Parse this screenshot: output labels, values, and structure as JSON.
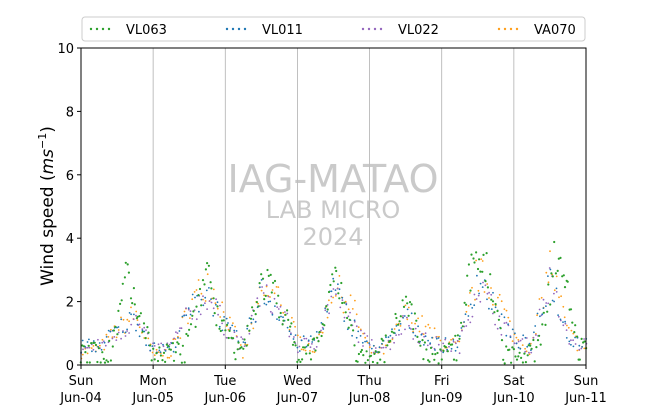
{
  "chart_data": {
    "type": "scatter",
    "ylabel_main": "Wind speed (",
    "ylabel_ms": "ms",
    "ylabel_exp": "−1",
    "ylabel_close": ")",
    "ylim": [
      0,
      10
    ],
    "yticks": [
      "0",
      "2",
      "4",
      "6",
      "8",
      "10"
    ],
    "xlim": [
      "2023-06-04 00:00",
      "2023-06-11 00:00"
    ],
    "xticks": [
      {
        "day": "Sun",
        "date": "Jun-04"
      },
      {
        "day": "Mon",
        "date": "Jun-05"
      },
      {
        "day": "Tue",
        "date": "Jun-06"
      },
      {
        "day": "Wed",
        "date": "Jun-07"
      },
      {
        "day": "Thu",
        "date": "Jun-08"
      },
      {
        "day": "Fri",
        "date": "Jun-09"
      },
      {
        "day": "Sat",
        "date": "Jun-10"
      },
      {
        "day": "Sun",
        "date": "Jun-11"
      }
    ],
    "grid": "vertical",
    "legend_placement": "top",
    "watermark": [
      "IAG-MATAO",
      "LAB MICRO",
      "2024"
    ],
    "series": [
      {
        "name": "VL063",
        "color": "#2ca02c",
        "x_hours": [
          0,
          3,
          6,
          9,
          12,
          15,
          18,
          21,
          24,
          27,
          30,
          33,
          36,
          39,
          42,
          45,
          48,
          51,
          54,
          57,
          60,
          63,
          66,
          69,
          72,
          75,
          78,
          81,
          84,
          87,
          90,
          93,
          96,
          99,
          102,
          105,
          108,
          111,
          114,
          117,
          120,
          123,
          126,
          129,
          132,
          135,
          138,
          141,
          144,
          147,
          150,
          153,
          156,
          159,
          162,
          165,
          168
        ],
        "values": [
          0.7,
          0.5,
          0.6,
          0.5,
          1.2,
          2.8,
          1.8,
          1.3,
          0.4,
          0.4,
          0.6,
          0.5,
          1.0,
          1.8,
          3.2,
          1.6,
          1.3,
          0.6,
          0.4,
          1.6,
          2.6,
          2.5,
          1.9,
          1.3,
          0.5,
          0.4,
          0.7,
          1.2,
          2.9,
          2.3,
          1.0,
          0.4,
          0.3,
          0.5,
          0.8,
          1.5,
          2.2,
          1.3,
          0.6,
          0.5,
          0.4,
          0.5,
          0.9,
          2.6,
          3.6,
          3.0,
          1.8,
          0.6,
          0.5,
          0.3,
          0.5,
          0.9,
          2.4,
          4.0,
          2.2,
          0.8,
          0.5
        ]
      },
      {
        "name": "VL011",
        "color": "#1f77b4",
        "x_hours": [
          0,
          6,
          12,
          18,
          24,
          30,
          36,
          42,
          48,
          54,
          60,
          66,
          72,
          78,
          84,
          90,
          96,
          102,
          108,
          114,
          120,
          126,
          132,
          138,
          144,
          150,
          156,
          162,
          168
        ],
        "values": [
          0.6,
          0.6,
          1.1,
          1.5,
          0.5,
          0.5,
          1.7,
          2.4,
          1.2,
          0.6,
          2.3,
          1.7,
          0.6,
          0.8,
          2.4,
          1.3,
          0.5,
          0.7,
          1.5,
          0.9,
          0.6,
          0.7,
          2.8,
          1.7,
          0.8,
          0.6,
          2.8,
          0.9,
          0.7
        ]
      },
      {
        "name": "VL022",
        "color": "#9467bd",
        "x_hours": [
          0,
          6,
          12,
          18,
          24,
          30,
          36,
          42,
          48,
          54,
          60,
          66,
          72,
          78,
          84,
          90,
          96,
          102,
          108,
          114,
          120,
          126,
          132,
          138,
          144,
          150,
          156,
          162,
          168
        ],
        "values": [
          0.5,
          0.6,
          1.0,
          1.4,
          0.5,
          0.6,
          1.6,
          2.2,
          1.2,
          0.6,
          2.2,
          1.8,
          0.6,
          0.7,
          2.3,
          1.3,
          0.6,
          0.6,
          1.4,
          0.8,
          0.6,
          0.6,
          2.6,
          1.6,
          0.7,
          0.6,
          2.6,
          0.8,
          0.6
        ]
      },
      {
        "name": "VA070",
        "color": "#ff9f1c",
        "x_hours": [
          0,
          6,
          12,
          18,
          24,
          30,
          36,
          42,
          48,
          54,
          60,
          66,
          72,
          78,
          84,
          90,
          96,
          102,
          108,
          114,
          120,
          126,
          132,
          138,
          144,
          150,
          156,
          162,
          168
        ],
        "values": [
          0.4,
          0.5,
          1.1,
          1.6,
          0.3,
          0.4,
          1.8,
          2.7,
          1.6,
          0.3,
          2.2,
          2.2,
          0.8,
          0.5,
          2.5,
          1.9,
          0.4,
          0.5,
          1.6,
          1.2,
          0.7,
          0.6,
          2.9,
          2.3,
          0.9,
          0.5,
          3.2,
          1.0,
          0.4
        ]
      }
    ]
  }
}
